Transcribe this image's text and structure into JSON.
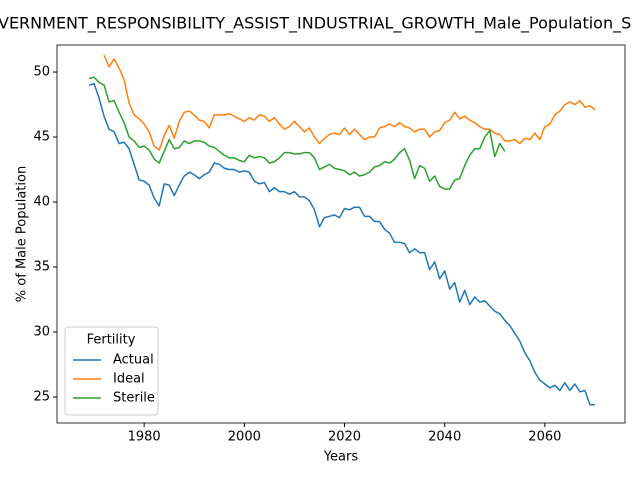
{
  "chart_data": {
    "type": "line",
    "title": "VERNMENT_RESPONSIBILITY_ASSIST_INDUSTRIAL_GROWTH_Male_Population_S",
    "xlabel": "Years",
    "ylabel": "% of Male Population",
    "legend_title": "Fertility",
    "legend": "lower left",
    "grid": false,
    "xlim": [
      1962.6,
      2076
    ],
    "ylim": [
      23.0,
      52.08
    ],
    "xticks": [
      1980,
      2000,
      2020,
      2040,
      2060
    ],
    "yticks": [
      25,
      30,
      35,
      40,
      45,
      50
    ],
    "x": [
      1969,
      1970,
      1971,
      1972,
      1973,
      1974,
      1975,
      1976,
      1977,
      1978,
      1979,
      1980,
      1981,
      1982,
      1983,
      1984,
      1985,
      1986,
      1987,
      1988,
      1989,
      1990,
      1991,
      1992,
      1993,
      1994,
      1995,
      1996,
      1997,
      1998,
      1999,
      2000,
      2001,
      2002,
      2003,
      2004,
      2005,
      2006,
      2007,
      2008,
      2009,
      2010,
      2011,
      2012,
      2013,
      2014,
      2015,
      2016,
      2017,
      2018,
      2019,
      2020,
      2021,
      2022,
      2023,
      2024,
      2025,
      2026,
      2027,
      2028,
      2029,
      2030,
      2031,
      2032,
      2033,
      2034,
      2035,
      2036,
      2037,
      2038,
      2039,
      2040,
      2041,
      2042,
      2043,
      2044,
      2045,
      2046,
      2047,
      2048,
      2049,
      2050,
      2051,
      2052,
      2053,
      2054,
      2055,
      2056,
      2057,
      2058,
      2059,
      2060,
      2061,
      2062,
      2063,
      2064,
      2065,
      2066,
      2067,
      2068,
      2069,
      2070
    ],
    "series": [
      {
        "name": "Actual",
        "color": "#1f77b4",
        "values": [
          49.0,
          49.1,
          48.0,
          46.6,
          45.6,
          45.4,
          44.5,
          44.6,
          44.1,
          42.9,
          41.7,
          41.6,
          41.3,
          40.3,
          39.7,
          41.4,
          41.3,
          40.5,
          41.3,
          42.0,
          42.3,
          42.1,
          41.8,
          42.1,
          42.3,
          43.0,
          42.9,
          42.6,
          42.5,
          42.5,
          42.3,
          42.4,
          42.3,
          41.6,
          41.4,
          41.5,
          40.8,
          41.1,
          40.8,
          40.8,
          40.6,
          40.8,
          40.4,
          40.4,
          40.1,
          39.4,
          38.1,
          38.8,
          38.9,
          39.0,
          38.8,
          39.5,
          39.4,
          39.6,
          39.6,
          38.9,
          38.9,
          38.5,
          38.5,
          37.9,
          37.6,
          36.9,
          36.9,
          36.8,
          36.1,
          36.4,
          36.1,
          36.1,
          34.8,
          35.4,
          34.1,
          34.7,
          33.3,
          33.8,
          32.3,
          33.2,
          32.1,
          32.7,
          32.3,
          32.4,
          32.0,
          31.6,
          31.4,
          30.9,
          30.5,
          29.9,
          29.3,
          28.4,
          27.8,
          26.9,
          26.3,
          26.0,
          25.7,
          25.9,
          25.5,
          26.1,
          25.5,
          26.0,
          25.4,
          25.5,
          24.4,
          24.4
        ]
      },
      {
        "name": "Ideal",
        "color": "#ff7f0e",
        "values": [
          null,
          null,
          null,
          51.3,
          50.4,
          51.0,
          50.3,
          49.4,
          47.6,
          46.7,
          46.4,
          46.0,
          45.4,
          44.3,
          44.0,
          45.1,
          45.9,
          44.9,
          46.2,
          46.9,
          47.0,
          46.7,
          46.3,
          46.2,
          45.7,
          46.7,
          46.7,
          46.7,
          46.8,
          46.6,
          46.4,
          46.2,
          46.5,
          46.3,
          46.7,
          46.6,
          46.2,
          46.5,
          46.0,
          45.6,
          45.8,
          46.2,
          45.8,
          45.4,
          45.7,
          45.0,
          44.5,
          44.9,
          45.2,
          45.3,
          45.2,
          45.7,
          45.2,
          45.6,
          45.2,
          44.8,
          45.0,
          45.0,
          45.7,
          45.8,
          46.0,
          45.8,
          46.1,
          45.8,
          45.7,
          45.4,
          45.6,
          45.6,
          45.0,
          45.4,
          45.5,
          46.1,
          46.3,
          46.9,
          46.4,
          46.6,
          46.3,
          46.1,
          45.8,
          45.6,
          45.6,
          45.3,
          45.2,
          44.7,
          44.7,
          44.8,
          44.5,
          44.9,
          44.8,
          45.3,
          44.8,
          45.8,
          46.0,
          46.7,
          47.0,
          47.5,
          47.7,
          47.5,
          47.8,
          47.3,
          47.4,
          47.1
        ]
      },
      {
        "name": "Sterile",
        "color": "#2ca02c",
        "values": [
          49.5,
          49.6,
          49.2,
          49.0,
          47.7,
          47.8,
          46.9,
          46.1,
          45.0,
          44.7,
          44.2,
          44.3,
          44.0,
          43.3,
          43.0,
          43.9,
          44.8,
          44.1,
          44.2,
          44.7,
          44.5,
          44.7,
          44.7,
          44.6,
          44.3,
          44.2,
          43.9,
          43.6,
          43.4,
          43.4,
          43.2,
          43.1,
          43.6,
          43.4,
          43.5,
          43.4,
          43.0,
          43.1,
          43.4,
          43.8,
          43.8,
          43.7,
          43.7,
          43.8,
          43.8,
          43.4,
          42.5,
          42.7,
          42.9,
          42.6,
          42.5,
          42.4,
          42.1,
          42.3,
          42.0,
          42.1,
          42.3,
          42.7,
          42.8,
          43.1,
          43.0,
          43.3,
          43.8,
          44.1,
          43.2,
          41.8,
          42.8,
          42.6,
          41.6,
          42.0,
          41.2,
          41.0,
          41.0,
          41.7,
          41.8,
          42.8,
          43.6,
          44.1,
          44.1,
          45.0,
          45.5,
          43.5,
          44.5,
          43.9,
          null,
          null,
          null,
          null,
          null,
          null,
          null,
          null,
          null,
          null,
          null,
          null,
          null,
          null,
          null,
          null,
          null,
          null
        ]
      }
    ]
  }
}
